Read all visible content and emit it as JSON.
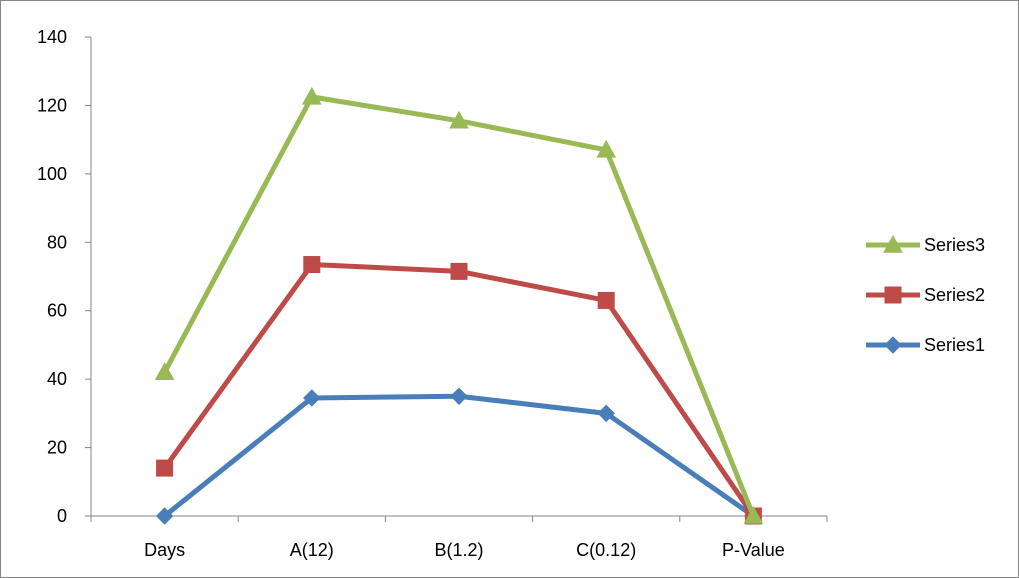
{
  "chart_data": {
    "type": "line",
    "title": "",
    "xlabel": "",
    "ylabel": "",
    "categories": [
      "Days",
      "A(12)",
      "B(1.2)",
      "C(0.12)",
      "P-Value"
    ],
    "ylim": [
      0,
      140
    ],
    "yticks": [
      0,
      20,
      40,
      60,
      80,
      100,
      120,
      140
    ],
    "grid": false,
    "legend_position": "right",
    "series": [
      {
        "name": "Series1",
        "color": "#4A7EBB",
        "marker": "diamond",
        "values": [
          0,
          34.5,
          35,
          30,
          0
        ]
      },
      {
        "name": "Series2",
        "color": "#BE4B48",
        "marker": "square",
        "values": [
          14,
          73.5,
          71.5,
          63,
          0
        ]
      },
      {
        "name": "Series3",
        "color": "#98B954",
        "marker": "triangle",
        "values": [
          42,
          122.5,
          115.5,
          107,
          0
        ]
      }
    ],
    "legend_order": [
      "Series3",
      "Series2",
      "Series1"
    ]
  }
}
